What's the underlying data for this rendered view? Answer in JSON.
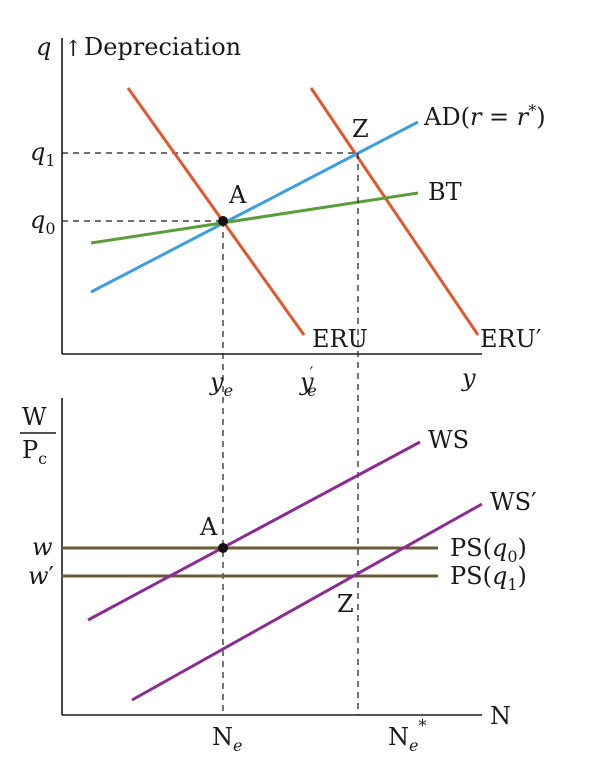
{
  "top_panel": {
    "y_axis": {
      "symbol": "q",
      "arrow_glyph": "↑",
      "label": "Depreciation"
    },
    "x_axis": {
      "symbol": "y"
    },
    "y_ticks": [
      {
        "base": "q",
        "sub": "1"
      },
      {
        "base": "q",
        "sub": "0"
      }
    ],
    "x_ticks": [
      {
        "base": "y",
        "sub": "e",
        "prime": ""
      },
      {
        "base": "y",
        "sub": "e",
        "prime": "′"
      }
    ],
    "curves": {
      "eru": {
        "label": "ERU",
        "color": "#e4572e"
      },
      "eru_prime": {
        "label": "ERU′",
        "color": "#e4572e"
      },
      "ad": {
        "label_prefix": "AD(",
        "r": "r",
        "eq": " = ",
        "r_star": "r",
        "star": "*",
        "suffix": ")",
        "color": "#3b9ee0"
      },
      "bt": {
        "label": "BT",
        "color": "#5a9e3c"
      }
    },
    "points": {
      "a": "A",
      "z": "Z"
    }
  },
  "bottom_panel": {
    "y_axis": {
      "numerator": "W",
      "denominator_base": "P",
      "denominator_sub": "c"
    },
    "x_axis": {
      "symbol": "N"
    },
    "y_ticks": [
      {
        "base": "w",
        "prime": ""
      },
      {
        "base": "w",
        "prime": "′"
      }
    ],
    "x_ticks": [
      {
        "base": "N",
        "sub": "e",
        "star": ""
      },
      {
        "base": "N",
        "sub": "e",
        "star": "*"
      }
    ],
    "curves": {
      "ws": {
        "label": "WS",
        "color": "#8b2b93"
      },
      "ws_prime": {
        "label": "WS′",
        "color": "#8b2b93"
      },
      "ps_q0": {
        "prefix": "PS(",
        "base": "q",
        "sub": "0",
        "suffix": ")",
        "color": "#6b5a3a"
      },
      "ps_q1": {
        "prefix": "PS(",
        "base": "q",
        "sub": "1",
        "suffix": ")",
        "color": "#6b5a3a"
      }
    },
    "points": {
      "a": "A",
      "z": "Z"
    }
  }
}
